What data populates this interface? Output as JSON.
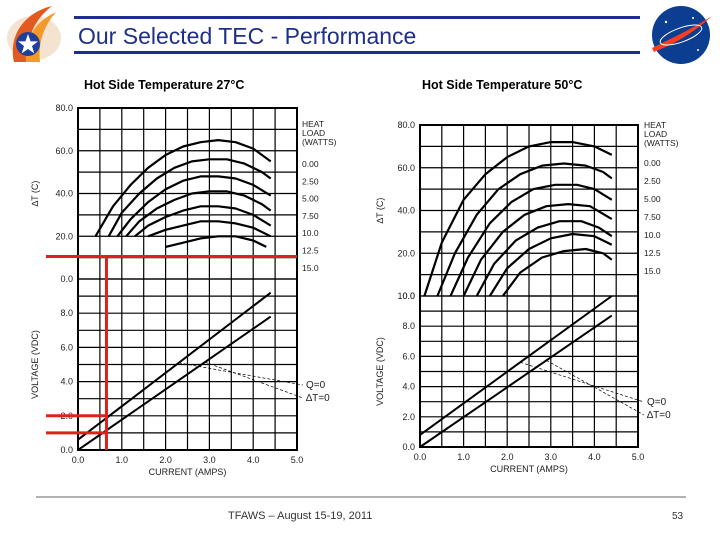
{
  "slide": {
    "title": "Our Selected TEC - Performance",
    "footer": "TFAWS – August 15-19, 2011",
    "page_number": "53",
    "logos": {
      "left": "TFAWS",
      "right": "NASA"
    }
  },
  "colors": {
    "title": "#1f2f87",
    "band": "#1f2f87",
    "highlight": "#e0201c",
    "curve": "#000000"
  },
  "chart_data": [
    {
      "type": "line",
      "title": "Hot Side Temperature 27°C",
      "upper": {
        "ylabel": "∆T (C)",
        "ylim": [
          0,
          80
        ],
        "yticks": [
          "0.0",
          "20.0",
          "40.0",
          "60.0",
          "80.0"
        ],
        "legend_title": [
          "HEAT",
          "LOAD",
          "(WATTS)"
        ],
        "series": [
          {
            "name": "0.00",
            "x": [
              0.4,
              0.8,
              1.2,
              1.6,
              2.0,
              2.4,
              2.8,
              3.2,
              3.6,
              4.0,
              4.4
            ],
            "y": [
              20,
              34,
              44,
              52,
              58,
              62,
              64,
              65,
              64,
              61,
              55
            ]
          },
          {
            "name": "2.50",
            "x": [
              0.7,
              1.0,
              1.4,
              1.8,
              2.2,
              2.6,
              3.0,
              3.4,
              3.8,
              4.2,
              4.4
            ],
            "y": [
              20,
              31,
              40,
              47,
              52,
              55,
              56,
              56,
              54,
              50,
              47
            ]
          },
          {
            "name": "5.00",
            "x": [
              0.9,
              1.2,
              1.6,
              2.0,
              2.4,
              2.8,
              3.2,
              3.6,
              4.0,
              4.4
            ],
            "y": [
              20,
              28,
              36,
              42,
              46,
              48,
              48,
              47,
              44,
              39
            ]
          },
          {
            "name": "7.50",
            "x": [
              1.1,
              1.4,
              1.8,
              2.2,
              2.6,
              3.0,
              3.4,
              3.8,
              4.2,
              4.4
            ],
            "y": [
              20,
              27,
              33,
              37,
              40,
              41,
              41,
              39,
              35,
              32
            ]
          },
          {
            "name": "10.0",
            "x": [
              1.3,
              1.6,
              2.0,
              2.4,
              2.8,
              3.2,
              3.6,
              4.0,
              4.4
            ],
            "y": [
              20,
              25,
              29,
              32,
              34,
              34,
              33,
              30,
              25
            ]
          },
          {
            "name": "12.5",
            "x": [
              1.6,
              2.0,
              2.4,
              2.8,
              3.2,
              3.6,
              4.0,
              4.4
            ],
            "y": [
              20,
              23,
              25,
              27,
              27,
              26,
              24,
              20
            ]
          },
          {
            "name": "15.0",
            "x": [
              2.0,
              2.4,
              2.8,
              3.2,
              3.6,
              4.0,
              4.3
            ],
            "y": [
              15,
              17,
              19,
              20,
              20,
              18,
              15
            ]
          }
        ]
      },
      "lower": {
        "ylabel": "VOLTAGE (VDC)",
        "ylim": [
          0,
          10
        ],
        "yticks": [
          "0.0",
          "2.0",
          "4.0",
          "6.0",
          "8.0"
        ],
        "xlabel": "CURRENT (AMPS)",
        "xlim": [
          0,
          5
        ],
        "xticks": [
          "0.0",
          "1.0",
          "2.0",
          "3.0",
          "4.0",
          "5.0"
        ],
        "series": [
          {
            "name": "Q=0",
            "style": "dashed",
            "x": [
              0,
              4.4
            ],
            "y": [
              0.6,
              9.2
            ]
          },
          {
            "name": "∆T=0",
            "style": "solid",
            "x": [
              0,
              4.4
            ],
            "y": [
              0,
              7.8
            ]
          }
        ],
        "curve_labels": [
          "Q=0",
          "∆T=0"
        ],
        "highlight": {
          "current": 0.65,
          "delta_t": 10.5,
          "voltages": [
            1.0,
            2.0
          ]
        }
      }
    },
    {
      "type": "line",
      "title": "Hot Side Temperature 50°C",
      "upper": {
        "ylabel": "∆T (C)",
        "ylim": [
          0,
          80
        ],
        "yticks": [
          "0.0",
          "20.0",
          "40.0",
          "60.0",
          "80.0"
        ],
        "legend_title": [
          "HEAT",
          "LOAD",
          "(WATTS)"
        ],
        "series": [
          {
            "name": "0.00",
            "x": [
              0.1,
              0.5,
              1.0,
              1.5,
              2.0,
              2.5,
              3.0,
              3.5,
              4.0,
              4.4
            ],
            "y": [
              0,
              25,
              45,
              57,
              65,
              70,
              72,
              72,
              70,
              66
            ]
          },
          {
            "name": "2.50",
            "x": [
              0.4,
              0.8,
              1.3,
              1.8,
              2.3,
              2.8,
              3.3,
              3.8,
              4.2,
              4.4
            ],
            "y": [
              0,
              20,
              38,
              50,
              57,
              61,
              62,
              61,
              58,
              55
            ]
          },
          {
            "name": "5.00",
            "x": [
              0.7,
              1.1,
              1.6,
              2.1,
              2.6,
              3.1,
              3.6,
              4.0,
              4.4
            ],
            "y": [
              0,
              18,
              34,
              44,
              50,
              52,
              52,
              50,
              45
            ]
          },
          {
            "name": "7.50",
            "x": [
              1.0,
              1.4,
              1.9,
              2.4,
              2.9,
              3.4,
              3.9,
              4.4
            ],
            "y": [
              0,
              17,
              30,
              38,
              42,
              43,
              42,
              36
            ]
          },
          {
            "name": "10.0",
            "x": [
              1.3,
              1.7,
              2.2,
              2.7,
              3.2,
              3.7,
              4.1,
              4.4
            ],
            "y": [
              0,
              15,
              26,
              32,
              35,
              35,
              32,
              28
            ]
          },
          {
            "name": "12.5",
            "x": [
              1.6,
              2.0,
              2.5,
              3.0,
              3.5,
              4.0,
              4.4
            ],
            "y": [
              0,
              13,
              22,
              27,
              29,
              28,
              24
            ]
          },
          {
            "name": "15.0",
            "x": [
              1.9,
              2.3,
              2.8,
              3.3,
              3.8,
              4.2,
              4.4
            ],
            "y": [
              0,
              11,
              18,
              21,
              22,
              20,
              17
            ]
          }
        ]
      },
      "lower": {
        "ylabel": "VOLTAGE (VDC)",
        "ylim": [
          0,
          10
        ],
        "yticks": [
          "0.0",
          "2.0",
          "4.0",
          "6.0",
          "8.0",
          "10.0"
        ],
        "xlabel": "CURRENT (AMPS)",
        "xlim": [
          0,
          5
        ],
        "xticks": [
          "0.0",
          "1.0",
          "2.0",
          "3.0",
          "4.0",
          "5.0"
        ],
        "series": [
          {
            "name": "Q=0",
            "style": "dashed",
            "x": [
              0,
              4.4
            ],
            "y": [
              0.8,
              10
            ]
          },
          {
            "name": "∆T=0",
            "style": "solid",
            "x": [
              0,
              4.4
            ],
            "y": [
              0,
              8.7
            ]
          }
        ],
        "curve_labels": [
          "Q=0",
          "∆T=0"
        ]
      }
    }
  ]
}
